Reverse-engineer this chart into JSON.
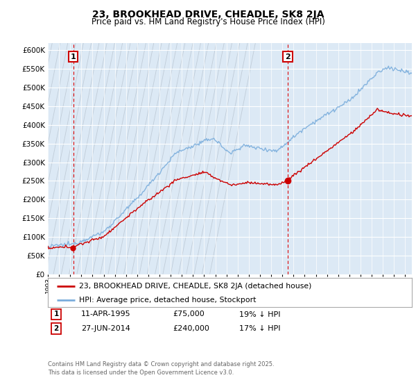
{
  "title": "23, BROOKHEAD DRIVE, CHEADLE, SK8 2JA",
  "subtitle": "Price paid vs. HM Land Registry's House Price Index (HPI)",
  "ylim": [
    0,
    620000
  ],
  "yticks": [
    0,
    50000,
    100000,
    150000,
    200000,
    250000,
    300000,
    350000,
    400000,
    450000,
    500000,
    550000,
    600000
  ],
  "hpi_color": "#7aaddc",
  "price_color": "#cc0000",
  "sale1_year": 1995.28,
  "sale1_price": 75000,
  "sale1_label": "1",
  "sale1_date": "11-APR-1995",
  "sale1_hpi_diff": "19% ↓ HPI",
  "sale2_year": 2014.49,
  "sale2_price": 240000,
  "sale2_label": "2",
  "sale2_date": "27-JUN-2014",
  "sale2_hpi_diff": "17% ↓ HPI",
  "legend_line1": "23, BROOKHEAD DRIVE, CHEADLE, SK8 2JA (detached house)",
  "legend_line2": "HPI: Average price, detached house, Stockport",
  "footnote": "Contains HM Land Registry data © Crown copyright and database right 2025.\nThis data is licensed under the Open Government Licence v3.0.",
  "bg_color": "#ffffff",
  "plot_bg_color": "#dce9f5",
  "grid_color": "#ffffff",
  "hatch_color": "#c0ccd8",
  "xmin": 1993.0,
  "xmax": 2025.6
}
